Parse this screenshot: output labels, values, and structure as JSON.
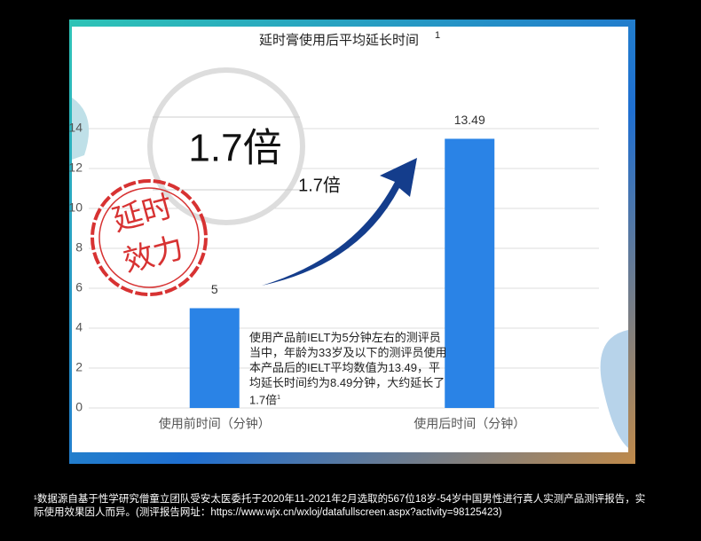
{
  "chart_data": {
    "type": "bar",
    "title": "延时膏使用后平均延长时间",
    "title_note": "1",
    "categories": [
      "使用前时间（分钟）",
      "使用后时间（分钟）"
    ],
    "values": [
      5,
      13.49
    ],
    "color": "#2a83e6",
    "ylim": [
      0,
      15
    ],
    "yticks": [
      0,
      2,
      4,
      6,
      8,
      10,
      12,
      14
    ],
    "grid": true,
    "magnifier_label": "1.7倍",
    "arrow_label": "1.7倍",
    "stamp": [
      "延时",
      "效力"
    ],
    "annotation": "使用产品前IELT为5分钟左右的测评员当中，年龄为33岁及以下的测评员使用本产品后的IELT平均数值为13.49，平均延长时间约为8.49分钟，大约延长了1.7倍",
    "annotation_note": "1"
  },
  "footnote": "¹数据源自基于性学研究僧童立团队受安太医委托于2020年11-2021年2月选取的567位18岁-54岁中国男性进行真人实测产品测评报告，实际使用效果因人而异。(测评报告网址：https://www.wjx.cn/wxloj/datafullscreen.aspx?activity=98125423)"
}
